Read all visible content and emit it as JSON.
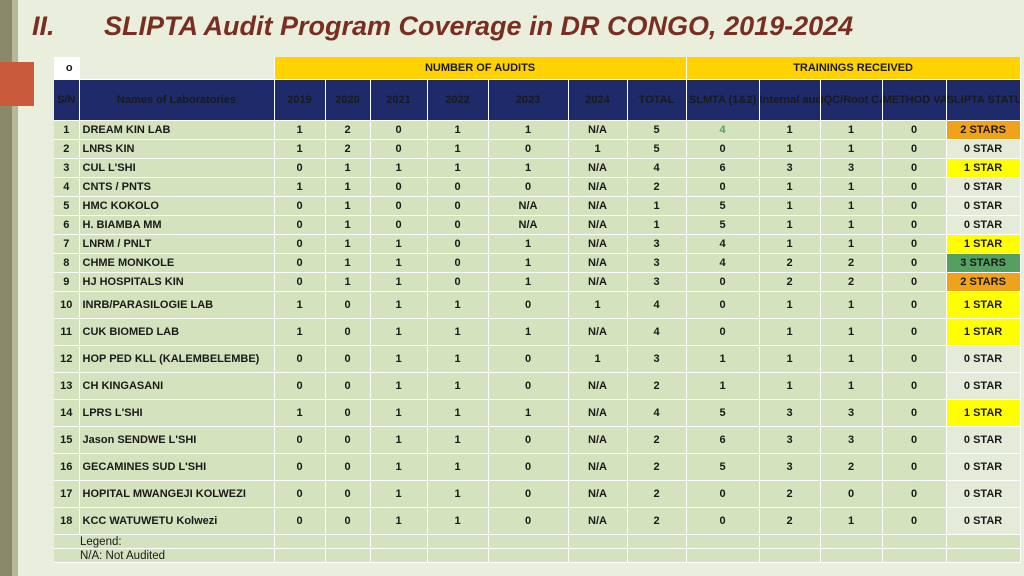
{
  "slide": {
    "title_number": "II.",
    "title_text": "SLIPTA Audit Program Coverage in DR CONGO, 2019-2024"
  },
  "table": {
    "top_cell": "o",
    "group_headers": {
      "audits": "NUMBER OF AUDITS",
      "trainings": "TRAININGS RECEIVED"
    },
    "columns": {
      "sn": "S/N",
      "name": "Names of  Laboratories",
      "y2019": "2019",
      "y2020": "2020",
      "y2021": "2021",
      "y2022": "2022",
      "y2023": "2023",
      "y2024": "2024",
      "total": "TOTAL",
      "slmta": "SLMTA (1&2)",
      "internal": "Internal audits",
      "iqc": "IQC/Root CAUSE",
      "method": "METHOD VALIDATION",
      "status": "SLIPTA STATUTS"
    },
    "rows": [
      {
        "sn": "1",
        "name": "DREAM KIN LAB",
        "y2019": "1",
        "y2020": "2",
        "y2021": "0",
        "y2022": "1",
        "y2023": "1",
        "y2024": "N/A",
        "total": "5",
        "slmta": "4",
        "internal": "1",
        "iqc": "1",
        "method": "0",
        "status": "2 STARS",
        "status_color": "#f1a21d"
      },
      {
        "sn": "2",
        "name": "LNRS KIN",
        "y2019": "1",
        "y2020": "2",
        "y2021": "0",
        "y2022": "1",
        "y2023": "0",
        "y2024": "1",
        "total": "5",
        "slmta": "0",
        "internal": "1",
        "iqc": "1",
        "method": "0",
        "status": "0 STAR",
        "status_color": "#e4ebd8"
      },
      {
        "sn": "3",
        "name": "CUL L'SHI",
        "y2019": "0",
        "y2020": "1",
        "y2021": "1",
        "y2022": "1",
        "y2023": "1",
        "y2024": "N/A",
        "total": "4",
        "slmta": "6",
        "internal": "3",
        "iqc": "3",
        "method": "0",
        "status": "1 STAR",
        "status_color": "#ffff00"
      },
      {
        "sn": "4",
        "name": "CNTS / PNTS",
        "y2019": "1",
        "y2020": "1",
        "y2021": "0",
        "y2022": "0",
        "y2023": "0",
        "y2024": "N/A",
        "total": "2",
        "slmta": "0",
        "internal": "1",
        "iqc": "1",
        "method": "0",
        "status": "0 STAR",
        "status_color": "#e4ebd8"
      },
      {
        "sn": "5",
        "name": "HMC KOKOLO",
        "y2019": "0",
        "y2020": "1",
        "y2021": "0",
        "y2022": "0",
        "y2023": "N/A",
        "y2024": "N/A",
        "total": "1",
        "slmta": "5",
        "internal": "1",
        "iqc": "1",
        "method": "0",
        "status": "0 STAR",
        "status_color": "#e4ebd8"
      },
      {
        "sn": "6",
        "name": "H. BIAMBA MM",
        "y2019": "0",
        "y2020": "1",
        "y2021": "0",
        "y2022": "0",
        "y2023": "N/A",
        "y2024": "N/A",
        "total": "1",
        "slmta": "5",
        "internal": "1",
        "iqc": "1",
        "method": "0",
        "status": "0 STAR",
        "status_color": "#e4ebd8"
      },
      {
        "sn": "7",
        "name": "LNRM / PNLT",
        "y2019": "0",
        "y2020": "1",
        "y2021": "1",
        "y2022": "0",
        "y2023": "1",
        "y2024": "N/A",
        "total": "3",
        "slmta": "4",
        "internal": "1",
        "iqc": "1",
        "method": "0",
        "status": "1 STAR",
        "status_color": "#ffff00"
      },
      {
        "sn": "8",
        "name": "CHME MONKOLE",
        "y2019": "0",
        "y2020": "1",
        "y2021": "1",
        "y2022": "0",
        "y2023": "1",
        "y2024": "N/A",
        "total": "3",
        "slmta": "4",
        "internal": "2",
        "iqc": "2",
        "method": "0",
        "status": "3 STARS",
        "status_color": "#55a060"
      },
      {
        "sn": "9",
        "name": "HJ HOSPITALS KIN",
        "y2019": "0",
        "y2020": "1",
        "y2021": "1",
        "y2022": "0",
        "y2023": "1",
        "y2024": "N/A",
        "total": "3",
        "slmta": "0",
        "internal": "2",
        "iqc": "2",
        "method": "0",
        "status": "2 STARS",
        "status_color": "#f1a21d"
      },
      {
        "sn": "10",
        "name": "INRB/PARASILOGIE LAB",
        "y2019": "1",
        "y2020": "0",
        "y2021": "1",
        "y2022": "1",
        "y2023": "0",
        "y2024": "1",
        "total": "4",
        "slmta": "0",
        "internal": "1",
        "iqc": "1",
        "method": "0",
        "status": "1 STAR",
        "status_color": "#ffff00"
      },
      {
        "sn": "11",
        "name": "CUK BIOMED LAB",
        "y2019": "1",
        "y2020": "0",
        "y2021": "1",
        "y2022": "1",
        "y2023": "1",
        "y2024": "N/A",
        "total": "4",
        "slmta": "0",
        "internal": "1",
        "iqc": "1",
        "method": "0",
        "status": "1 STAR",
        "status_color": "#ffff00"
      },
      {
        "sn": "12",
        "name": "HOP PED KLL (KALEMBELEMBE)",
        "y2019": "0",
        "y2020": "0",
        "y2021": "1",
        "y2022": "1",
        "y2023": "0",
        "y2024": "1",
        "total": "3",
        "slmta": "1",
        "internal": "1",
        "iqc": "1",
        "method": "0",
        "status": "0 STAR",
        "status_color": "#e4ebd8"
      },
      {
        "sn": "13",
        "name": "CH KINGASANI",
        "y2019": "0",
        "y2020": "0",
        "y2021": "1",
        "y2022": "1",
        "y2023": "0",
        "y2024": "N/A",
        "total": "2",
        "slmta": "1",
        "internal": "1",
        "iqc": "1",
        "method": "0",
        "status": "0 STAR",
        "status_color": "#e4ebd8"
      },
      {
        "sn": "14",
        "name": "LPRS L'SHI",
        "y2019": "1",
        "y2020": "0",
        "y2021": "1",
        "y2022": "1",
        "y2023": "1",
        "y2024": "N/A",
        "total": "4",
        "slmta": "5",
        "internal": "3",
        "iqc": "3",
        "method": "0",
        "status": "1 STAR",
        "status_color": "#ffff00"
      },
      {
        "sn": "15",
        "name": "Jason SENDWE L'SHI",
        "y2019": "0",
        "y2020": "0",
        "y2021": "1",
        "y2022": "1",
        "y2023": "0",
        "y2024": "N/A",
        "total": "2",
        "slmta": "6",
        "internal": "3",
        "iqc": "3",
        "method": "0",
        "status": "0 STAR",
        "status_color": "#e4ebd8"
      },
      {
        "sn": "16",
        "name": "GECAMINES SUD L'SHI",
        "y2019": "0",
        "y2020": "0",
        "y2021": "1",
        "y2022": "1",
        "y2023": "0",
        "y2024": "N/A",
        "total": "2",
        "slmta": "5",
        "internal": "3",
        "iqc": "2",
        "method": "0",
        "status": "0 STAR",
        "status_color": "#e4ebd8"
      },
      {
        "sn": "17",
        "name": "HOPITAL MWANGEJI KOLWEZI",
        "y2019": "0",
        "y2020": "0",
        "y2021": "1",
        "y2022": "1",
        "y2023": "0",
        "y2024": "N/A",
        "total": "2",
        "slmta": "0",
        "internal": "2",
        "iqc": "0",
        "method": "0",
        "status": "0 STAR",
        "status_color": "#e4ebd8"
      },
      {
        "sn": "18",
        "name": "KCC WATUWETU Kolwezi",
        "y2019": "0",
        "y2020": "0",
        "y2021": "1",
        "y2022": "1",
        "y2023": "0",
        "y2024": "N/A",
        "total": "2",
        "slmta": "0",
        "internal": "2",
        "iqc": "1",
        "method": "0",
        "status": "0 STAR",
        "status_color": "#e4ebd8"
      }
    ],
    "legend": {
      "title": "Legend:",
      "na": "N/A: Not Audited"
    }
  },
  "colors": {
    "header_navy": "#1f2a6b",
    "header_yellow": "#ffd200",
    "cell_green": "#d4e2bd",
    "title_red": "#7a2e22"
  }
}
